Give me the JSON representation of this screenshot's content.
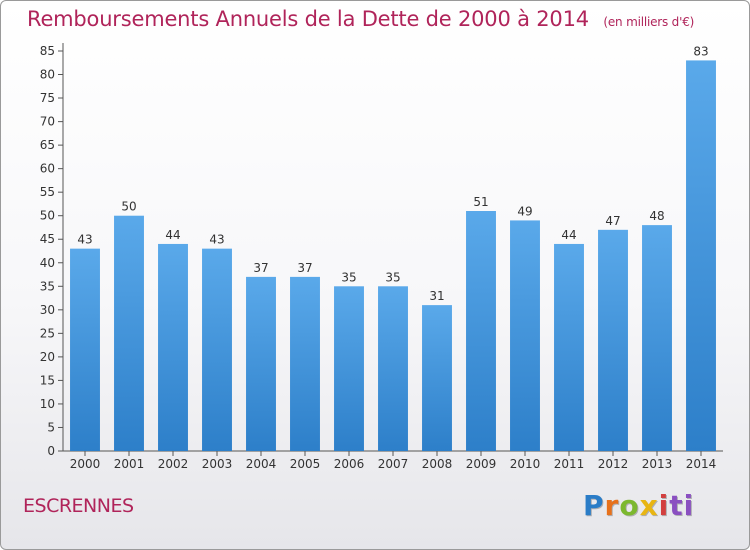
{
  "chart_data": {
    "type": "bar",
    "title": "Remboursements Annuels de la Dette de 2000 à 2014",
    "subtitle": "(en milliers d'€)",
    "xlabel": "",
    "ylabel": "",
    "categories": [
      "2000",
      "2001",
      "2002",
      "2003",
      "2004",
      "2005",
      "2006",
      "2007",
      "2008",
      "2009",
      "2010",
      "2011",
      "2012",
      "2013",
      "2014"
    ],
    "values": [
      43,
      50,
      44,
      43,
      37,
      37,
      35,
      35,
      31,
      51,
      49,
      44,
      47,
      48,
      83
    ],
    "ylim": [
      0,
      85
    ],
    "yticks": [
      0,
      5,
      10,
      15,
      20,
      25,
      30,
      35,
      40,
      45,
      50,
      55,
      60,
      65,
      70,
      75,
      80,
      85
    ],
    "grid": false,
    "legend": "none",
    "bar_color": "#4a9be0",
    "title_color": "#b0245a"
  },
  "footer": {
    "place": "ESCRENNES",
    "logo": [
      "P",
      "r",
      "o",
      "x",
      "i",
      "ti"
    ]
  }
}
